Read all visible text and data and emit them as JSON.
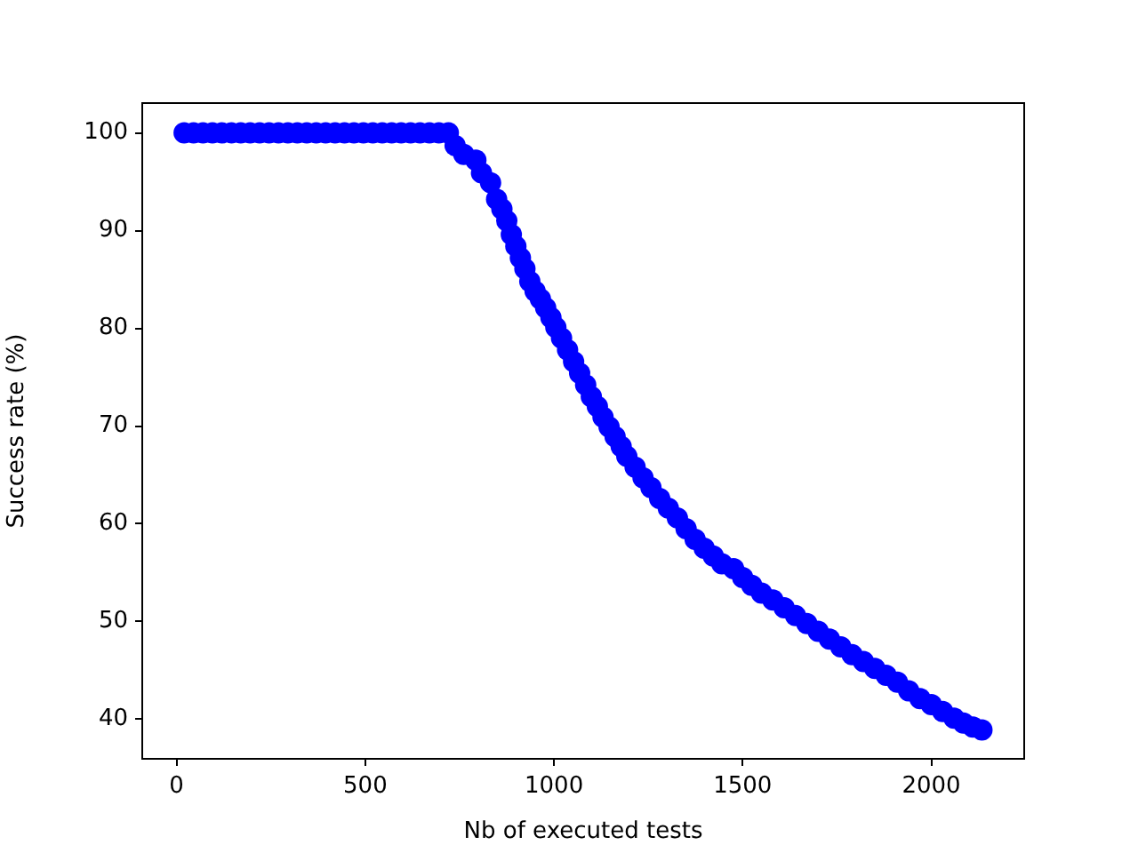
{
  "chart_data": {
    "type": "scatter",
    "xlabel": "Nb of executed tests",
    "ylabel": "Success rate (%)",
    "color": "#0000ff",
    "marker": "circle",
    "x": [
      20,
      45,
      70,
      95,
      120,
      145,
      170,
      195,
      220,
      245,
      270,
      295,
      320,
      345,
      370,
      395,
      420,
      445,
      470,
      495,
      520,
      545,
      570,
      595,
      620,
      645,
      670,
      695,
      720,
      738,
      761,
      793,
      808,
      832,
      848,
      862,
      875,
      887,
      899,
      911,
      923,
      936,
      950,
      964,
      978,
      992,
      1005,
      1020,
      1036,
      1052,
      1068,
      1084,
      1099,
      1115,
      1130,
      1146,
      1162,
      1178,
      1193,
      1215,
      1236,
      1257,
      1280,
      1303,
      1327,
      1350,
      1374,
      1398,
      1422,
      1445,
      1476,
      1500,
      1524,
      1550,
      1580,
      1610,
      1640,
      1670,
      1700,
      1730,
      1760,
      1790,
      1820,
      1850,
      1880,
      1910,
      1940,
      1970,
      2000,
      2030,
      2060,
      2085,
      2110,
      2134
    ],
    "values": [
      100,
      100,
      100,
      100,
      100,
      100,
      100,
      100,
      100,
      100,
      100,
      100,
      100,
      100,
      100,
      100,
      100,
      100,
      100,
      100,
      100,
      100,
      100,
      100,
      100,
      100,
      100,
      100,
      100,
      98.7,
      97.8,
      97.2,
      95.9,
      94.9,
      93.2,
      92.2,
      91.0,
      89.6,
      88.4,
      87.2,
      86.1,
      84.8,
      83.8,
      83.0,
      82.1,
      81.1,
      80.1,
      79.0,
      77.8,
      76.6,
      75.4,
      74.2,
      73.0,
      72.0,
      70.9,
      69.9,
      68.9,
      67.9,
      66.9,
      65.8,
      64.7,
      63.7,
      62.6,
      61.6,
      60.6,
      59.5,
      58.4,
      57.5,
      56.7,
      55.9,
      55.4,
      54.5,
      53.7,
      52.9,
      52.2,
      51.4,
      50.6,
      49.8,
      49.0,
      48.2,
      47.4,
      46.6,
      45.9,
      45.2,
      44.5,
      43.8,
      42.9,
      42.1,
      41.5,
      40.8,
      40.1,
      39.6,
      39.2,
      38.9
    ],
    "xlim": [
      -91,
      2246
    ],
    "ylim": [
      35.95,
      103.05
    ],
    "xticks": [
      0,
      500,
      1000,
      1500,
      2000
    ],
    "yticks": [
      40,
      50,
      60,
      70,
      80,
      90,
      100
    ]
  }
}
